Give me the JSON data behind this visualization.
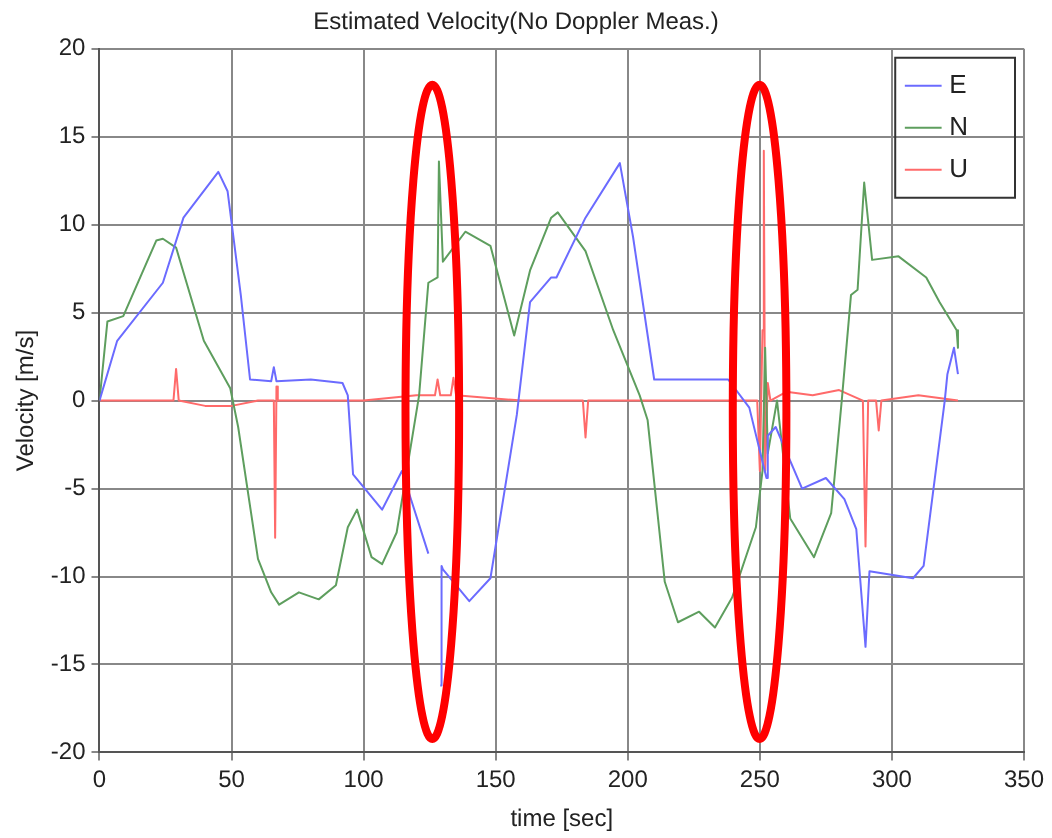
{
  "chart_data": {
    "type": "line",
    "title": "Estimated Velocity(No Doppler Meas.)",
    "xlabel": "time [sec]",
    "ylabel": "Velocity [m/s]",
    "xlim": [
      0,
      350
    ],
    "xticks": [
      0,
      50,
      100,
      150,
      200,
      250,
      300,
      350
    ],
    "ylim": [
      -20,
      20
    ],
    "yticks": [
      -20,
      -15,
      -10,
      -5,
      0,
      5,
      10,
      15,
      20
    ],
    "grid": true,
    "legend": "top right",
    "series": [
      {
        "name": "E",
        "color": "#6b6bff",
        "x": [
          0,
          6.7,
          24,
          31.8,
          45,
          48.5,
          53.5,
          57,
          65,
          66,
          67,
          80,
          92,
          94,
          96,
          107,
          114.5,
          124.5,
          126,
          129,
          129.5,
          130,
          140,
          148,
          158,
          163,
          171,
          173,
          184,
          197,
          202,
          210,
          238,
          246,
          252.5,
          253,
          256,
          266,
          275,
          282,
          286.5,
          290,
          291.5,
          308,
          312,
          320,
          321,
          323.5,
          325
        ],
        "values": [
          0,
          3.4,
          6.7,
          10.4,
          13,
          11.9,
          6,
          1.2,
          1.1,
          1.9,
          1.1,
          1.2,
          1,
          0.3,
          -4.2,
          -6.2,
          -4,
          -8.7,
          null,
          -16.2,
          -9.4,
          -9.6,
          -11.4,
          -10.1,
          -0.8,
          5.6,
          7,
          7,
          10.4,
          13.5,
          9.3,
          1.2,
          1.2,
          -0.4,
          -4.4,
          -2,
          -1.5,
          -5,
          -4.4,
          -5.6,
          -7.3,
          -14,
          -9.7,
          -10.1,
          -9.4,
          0,
          1.5,
          3,
          1.5
        ]
      },
      {
        "name": "N",
        "color": "#5e9e5e",
        "x": [
          0,
          3,
          9,
          21.5,
          24,
          29,
          39.5,
          49.5,
          52.5,
          60,
          65,
          68,
          75.5,
          83,
          89.5,
          94,
          97.5,
          103,
          107,
          112.5,
          121,
          124.5,
          128,
          128.5,
          130,
          138.5,
          148,
          157,
          163,
          171,
          173.5,
          184,
          194.5,
          204.5,
          207.5,
          214,
          219,
          227,
          233,
          239.5,
          248.5,
          251,
          252,
          253,
          256.5,
          261.5,
          270.5,
          277,
          281,
          284.5,
          287,
          289.5,
          292.5,
          302.5,
          313,
          318,
          324.5,
          325
        ],
        "values": [
          0,
          4.5,
          4.8,
          9.1,
          9.2,
          8.7,
          3.4,
          0.7,
          -1.5,
          -9,
          -10.9,
          -11.6,
          -10.9,
          -11.3,
          -10.5,
          -7.2,
          -6.2,
          -8.9,
          -9.3,
          -7.5,
          0.3,
          6.7,
          7,
          13.6,
          7.9,
          9.6,
          8.8,
          3.7,
          7.4,
          10.4,
          10.7,
          8.5,
          4,
          0.3,
          -1.1,
          -10.3,
          -12.6,
          -12,
          -12.9,
          -11.2,
          -7.2,
          -4,
          3,
          -3,
          0,
          -6.7,
          -8.9,
          -6.4,
          0,
          6,
          6.3,
          12.4,
          8,
          8.2,
          7,
          5.6,
          4,
          3
        ]
      },
      {
        "name": "U",
        "color": "#ff6a6a",
        "x": [
          0,
          28,
          29,
          30,
          40,
          50,
          60,
          66,
          66.5,
          67,
          67.5,
          80,
          100,
          120,
          127,
          128,
          129,
          133,
          134,
          135,
          160,
          183,
          184,
          185,
          220,
          249,
          250,
          251,
          251.5,
          252,
          253,
          254,
          260,
          270,
          280,
          289,
          290,
          291,
          294,
          295,
          296,
          310,
          325
        ],
        "values": [
          0,
          0,
          1.8,
          0,
          -0.3,
          -0.3,
          0,
          0,
          -7.8,
          0.8,
          0,
          0,
          0,
          0.3,
          0.3,
          1.2,
          0.3,
          0.3,
          1.3,
          0.3,
          0,
          0,
          -2.1,
          0,
          0,
          0,
          -4,
          4,
          14.2,
          -4,
          1,
          0,
          0.5,
          0.3,
          0.6,
          0,
          -8.3,
          0,
          0,
          -1.7,
          0,
          0.3,
          0
        ]
      }
    ]
  }
}
